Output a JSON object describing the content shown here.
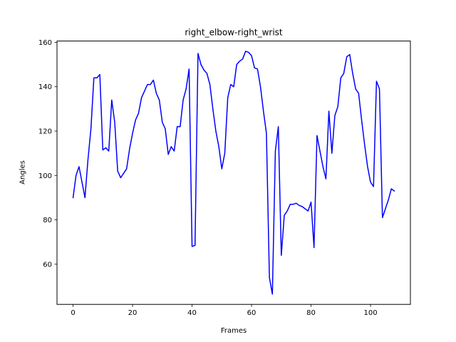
{
  "chart_data": {
    "type": "line",
    "title": "right_elbow-right_wrist",
    "xlabel": "Frames",
    "ylabel": "Angles",
    "xlim": [
      -5.4,
      113.4
    ],
    "ylim": [
      41.9,
      160.6
    ],
    "xticks": [
      0,
      20,
      40,
      60,
      80,
      100
    ],
    "yticks": [
      60,
      80,
      100,
      120,
      140,
      160
    ],
    "grid": false,
    "series": [
      {
        "color": "#0000ff",
        "x": [
          0,
          1,
          2,
          3,
          4,
          5,
          6,
          7,
          8,
          9,
          10,
          11,
          12,
          13,
          14,
          15,
          16,
          17,
          18,
          19,
          20,
          21,
          22,
          23,
          24,
          25,
          26,
          27,
          28,
          29,
          30,
          31,
          32,
          33,
          34,
          35,
          36,
          37,
          38,
          39,
          40,
          41,
          42,
          43,
          44,
          45,
          46,
          47,
          48,
          49,
          50,
          51,
          52,
          53,
          54,
          55,
          56,
          57,
          58,
          59,
          60,
          61,
          62,
          63,
          64,
          65,
          66,
          67,
          68,
          69,
          70,
          71,
          72,
          73,
          74,
          75,
          76,
          77,
          78,
          79,
          80,
          81,
          82,
          83,
          84,
          85,
          86,
          87,
          88,
          89,
          90,
          91,
          92,
          93,
          94,
          95,
          96,
          97,
          98,
          99,
          100,
          101,
          102,
          103,
          104,
          105,
          106,
          107,
          108
        ],
        "values": [
          90,
          100,
          104,
          97,
          90,
          107,
          121,
          144,
          144,
          145.5,
          111.5,
          112.5,
          111,
          134,
          124,
          102,
          99,
          101,
          103,
          112,
          119,
          125,
          128,
          135,
          138,
          141,
          141,
          143,
          137,
          134,
          124,
          121,
          109.5,
          113,
          111,
          122,
          122,
          134,
          139,
          148,
          68,
          68.5,
          155,
          150,
          147.5,
          146,
          141,
          130,
          120,
          113,
          103,
          110,
          135,
          141,
          140,
          150,
          151.5,
          152.5,
          156,
          155.5,
          154,
          148.5,
          148,
          140,
          129,
          119,
          54,
          46.5,
          111,
          122,
          64,
          82,
          84,
          87,
          87,
          87.5,
          86.5,
          86,
          85,
          84,
          88,
          67.5,
          118,
          111,
          104,
          98.5,
          129,
          110,
          127,
          131,
          144,
          146,
          153.5,
          154.5,
          146,
          139,
          137,
          125,
          114,
          104,
          97,
          95,
          142.5,
          139,
          81,
          85,
          89,
          94,
          93
        ]
      }
    ]
  }
}
